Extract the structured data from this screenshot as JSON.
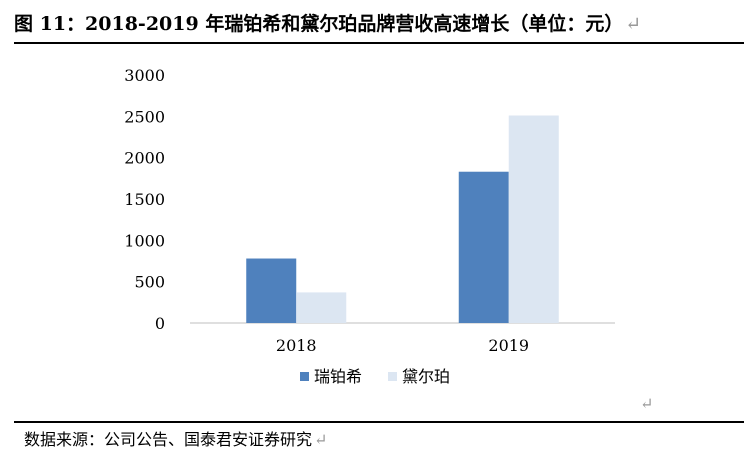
{
  "figure": {
    "title": "图 11：2018-2019 年瑞铂希和黛尔珀品牌营收高速增长（单位：元）",
    "return_mark": "↵",
    "source": "数据来源：公司公告、国泰君安证券研究"
  },
  "chart_data": {
    "type": "bar",
    "categories": [
      "2018",
      "2019"
    ],
    "series": [
      {
        "name": "瑞铂希",
        "values": [
          780,
          1830
        ],
        "color": "#4f81bd"
      },
      {
        "name": "黛尔珀",
        "values": [
          370,
          2510
        ],
        "color": "#dce6f2"
      }
    ],
    "ylim": [
      0,
      3000
    ],
    "yticks": [
      0,
      500,
      1000,
      1500,
      2000,
      2500,
      3000
    ],
    "grid": false,
    "legend_position": "bottom",
    "title": "",
    "xlabel": "",
    "ylabel": ""
  }
}
